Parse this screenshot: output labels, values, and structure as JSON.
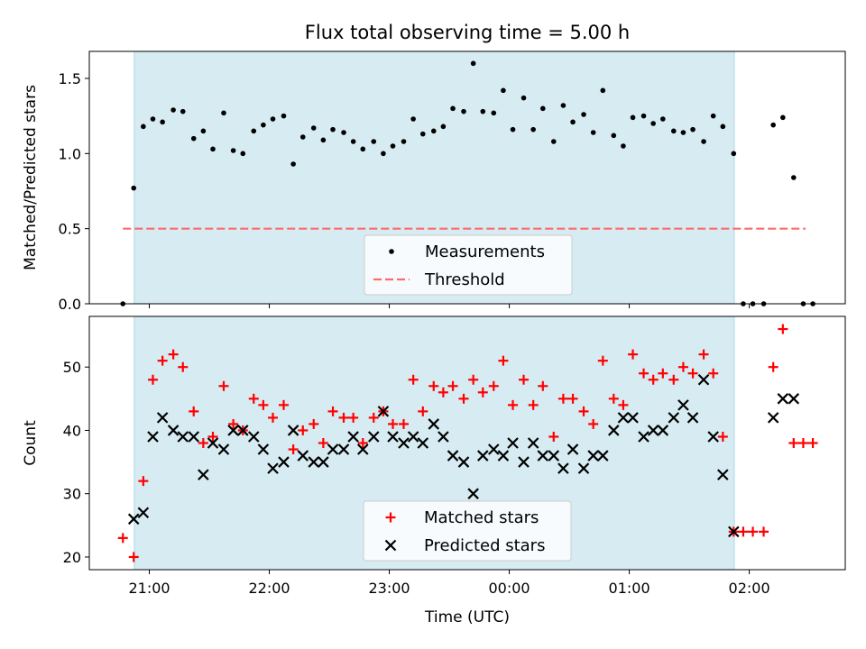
{
  "chart_data": {
    "title": "Flux total observing time = 5.00 h",
    "xlabel": "Time (UTC)",
    "x_unit_note": "hours since midnight UTC",
    "x_ticks": [
      {
        "value": -3,
        "label": "21:00"
      },
      {
        "value": -2,
        "label": "22:00"
      },
      {
        "value": -1,
        "label": "23:00"
      },
      {
        "value": 0,
        "label": "00:00"
      },
      {
        "value": 1,
        "label": "01:00"
      },
      {
        "value": 2,
        "label": "02:00"
      }
    ],
    "xlim": [
      -3.5,
      2.8
    ],
    "observing_window": {
      "start": -3.125,
      "end": 1.875,
      "color": "#add8e6"
    },
    "panels": [
      {
        "type": "scatter",
        "ylabel": "Matched/Predicted stars",
        "ylim": [
          0,
          1.68
        ],
        "y_ticks": [
          0.0,
          0.5,
          1.0,
          1.5
        ],
        "y_tick_labels": [
          "0.0",
          "0.5",
          "1.0",
          "1.5"
        ],
        "threshold": {
          "name": "Threshold",
          "y": 0.5,
          "x": [
            -3.22,
            2.47
          ],
          "color": "#ff6b6b"
        },
        "series": [
          {
            "name": "Measurements",
            "marker": "dot",
            "color": "#000000",
            "x": [
              -3.22,
              -3.13,
              -3.05,
              -2.97,
              -2.89,
              -2.8,
              -2.72,
              -2.63,
              -2.55,
              -2.47,
              -2.38,
              -2.3,
              -2.22,
              -2.13,
              -2.05,
              -1.97,
              -1.88,
              -1.8,
              -1.72,
              -1.63,
              -1.55,
              -1.47,
              -1.38,
              -1.3,
              -1.22,
              -1.13,
              -1.05,
              -0.97,
              -0.88,
              -0.8,
              -0.72,
              -0.63,
              -0.55,
              -0.47,
              -0.38,
              -0.3,
              -0.22,
              -0.13,
              -0.05,
              0.03,
              0.12,
              0.2,
              0.28,
              0.37,
              0.45,
              0.53,
              0.62,
              0.7,
              0.78,
              0.87,
              0.95,
              1.03,
              1.12,
              1.2,
              1.28,
              1.37,
              1.45,
              1.53,
              1.62,
              1.7,
              1.78,
              1.87,
              1.95,
              2.03,
              2.12,
              2.2,
              2.28,
              2.37,
              2.45,
              2.53
            ],
            "y": [
              0.0,
              0.77,
              1.18,
              1.23,
              1.21,
              1.29,
              1.28,
              1.1,
              1.15,
              1.03,
              1.27,
              1.02,
              1.0,
              1.15,
              1.19,
              1.23,
              1.25,
              0.93,
              1.11,
              1.17,
              1.09,
              1.16,
              1.14,
              1.08,
              1.03,
              1.08,
              1.0,
              1.05,
              1.08,
              1.23,
              1.13,
              1.15,
              1.18,
              1.3,
              1.28,
              1.6,
              1.28,
              1.27,
              1.42,
              1.16,
              1.37,
              1.16,
              1.3,
              1.08,
              1.32,
              1.21,
              1.26,
              1.14,
              1.42,
              1.12,
              1.05,
              1.24,
              1.25,
              1.2,
              1.23,
              1.15,
              1.14,
              1.16,
              1.08,
              1.25,
              1.18,
              1.0,
              0.0,
              0.0,
              0.0,
              1.19,
              1.24,
              0.84,
              0.0,
              0.0
            ]
          }
        ],
        "legend": {
          "placement": "lower-center",
          "entries": [
            "Measurements",
            "Threshold"
          ]
        }
      },
      {
        "type": "scatter",
        "ylabel": "Count",
        "ylim": [
          18,
          58
        ],
        "y_ticks": [
          20,
          30,
          40,
          50
        ],
        "y_tick_labels": [
          "20",
          "30",
          "40",
          "50"
        ],
        "series": [
          {
            "name": "Matched stars",
            "marker": "plus",
            "color": "#ff0000",
            "x": [
              -3.22,
              -3.13,
              -3.05,
              -2.97,
              -2.89,
              -2.8,
              -2.72,
              -2.63,
              -2.55,
              -2.47,
              -2.38,
              -2.3,
              -2.22,
              -2.13,
              -2.05,
              -1.97,
              -1.88,
              -1.8,
              -1.72,
              -1.63,
              -1.55,
              -1.47,
              -1.38,
              -1.3,
              -1.22,
              -1.13,
              -1.05,
              -0.97,
              -0.88,
              -0.8,
              -0.72,
              -0.63,
              -0.55,
              -0.47,
              -0.38,
              -0.3,
              -0.22,
              -0.13,
              -0.05,
              0.03,
              0.12,
              0.2,
              0.28,
              0.37,
              0.45,
              0.53,
              0.62,
              0.7,
              0.78,
              0.87,
              0.95,
              1.03,
              1.12,
              1.2,
              1.28,
              1.37,
              1.45,
              1.53,
              1.62,
              1.7,
              1.78,
              1.87,
              1.95,
              2.03,
              2.12,
              2.2,
              2.28,
              2.37,
              2.45,
              2.53
            ],
            "y": [
              23,
              20,
              32,
              48,
              51,
              52,
              50,
              43,
              38,
              39,
              47,
              41,
              40,
              45,
              44,
              42,
              44,
              37,
              40,
              41,
              38,
              43,
              42,
              42,
              38,
              42,
              43,
              41,
              41,
              48,
              43,
              47,
              46,
              47,
              45,
              48,
              46,
              47,
              51,
              44,
              48,
              44,
              47,
              39,
              45,
              45,
              43,
              41,
              51,
              45,
              44,
              52,
              49,
              48,
              49,
              48,
              50,
              49,
              52,
              49,
              39,
              24,
              24,
              24,
              24,
              50,
              56,
              38,
              38,
              38
            ]
          },
          {
            "name": "Predicted stars",
            "marker": "x",
            "color": "#000000",
            "x": [
              -3.13,
              -3.05,
              -2.97,
              -2.89,
              -2.8,
              -2.72,
              -2.63,
              -2.55,
              -2.47,
              -2.38,
              -2.3,
              -2.22,
              -2.13,
              -2.05,
              -1.97,
              -1.88,
              -1.8,
              -1.72,
              -1.63,
              -1.55,
              -1.47,
              -1.38,
              -1.3,
              -1.22,
              -1.13,
              -1.05,
              -0.97,
              -0.88,
              -0.8,
              -0.72,
              -0.63,
              -0.55,
              -0.47,
              -0.38,
              -0.3,
              -0.22,
              -0.13,
              -0.05,
              0.03,
              0.12,
              0.2,
              0.28,
              0.37,
              0.45,
              0.53,
              0.62,
              0.7,
              0.78,
              0.87,
              0.95,
              1.03,
              1.12,
              1.2,
              1.28,
              1.37,
              1.45,
              1.53,
              1.62,
              1.7,
              1.78,
              1.87,
              2.2,
              2.28,
              2.37
            ],
            "y": [
              26,
              27,
              39,
              42,
              40,
              39,
              39,
              33,
              38,
              37,
              40,
              40,
              39,
              37,
              34,
              35,
              40,
              36,
              35,
              35,
              37,
              37,
              39,
              37,
              39,
              43,
              39,
              38,
              39,
              38,
              41,
              39,
              36,
              35,
              30,
              36,
              37,
              36,
              38,
              35,
              38,
              36,
              36,
              34,
              37,
              34,
              36,
              36,
              40,
              42,
              42,
              39,
              40,
              40,
              42,
              44,
              42,
              48,
              39,
              33,
              24,
              42,
              45,
              45
            ]
          }
        ],
        "legend": {
          "placement": "lower-center",
          "entries": [
            "Matched stars",
            "Predicted stars"
          ]
        }
      }
    ]
  }
}
